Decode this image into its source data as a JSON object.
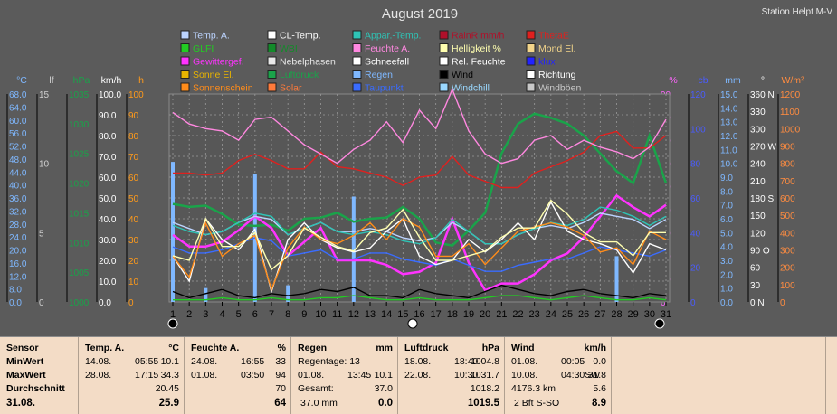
{
  "chart_data": {
    "type": "line",
    "title": "August 2019",
    "station": "Station Helpt M-V",
    "x": [
      1,
      2,
      3,
      4,
      5,
      6,
      7,
      8,
      9,
      10,
      11,
      12,
      13,
      14,
      15,
      16,
      17,
      18,
      19,
      20,
      21,
      22,
      23,
      24,
      25,
      26,
      27,
      28,
      29,
      30,
      31
    ],
    "xlim": [
      1,
      31
    ],
    "grid": true,
    "axes_left": [
      {
        "label": "°C",
        "color": "#7fb8ff",
        "ticks": [
          "68.0",
          "64.0",
          "60.0",
          "56.0",
          "52.0",
          "48.0",
          "44.0",
          "40.0",
          "36.0",
          "32.0",
          "28.0",
          "24.0",
          "20.0",
          "16.0",
          "12.0",
          "8.0",
          "0.0"
        ]
      },
      {
        "label": "lf",
        "color": "#d0d0d0",
        "ticks": [
          "15",
          "10",
          "5",
          "0"
        ]
      },
      {
        "label": "hPa",
        "color": "#1aa34a",
        "ticks": [
          "1035",
          "1030",
          "1025",
          "1020",
          "1015",
          "1010",
          "1005",
          "1000"
        ]
      },
      {
        "label": "km/h",
        "color": "#ffffff",
        "ticks": [
          "100.0",
          "90.0",
          "80.0",
          "70.0",
          "60.0",
          "50.0",
          "40.0",
          "30.0",
          "20.0",
          "10.0",
          "0.0"
        ]
      },
      {
        "label": "h",
        "color": "#ff9a1a",
        "ticks": [
          "100",
          "90",
          "80",
          "70",
          "60",
          "50",
          "40",
          "30",
          "20",
          "10",
          "0"
        ]
      }
    ],
    "axes_right": [
      {
        "label": "%",
        "color": "#ff66ff",
        "ticks": [
          "90",
          "80",
          "70",
          "60",
          "50",
          "40",
          "30",
          "20",
          "10",
          "0"
        ]
      },
      {
        "label": "cb",
        "color": "#4a5cff",
        "ticks": [
          "120",
          "100",
          "80",
          "60",
          "40",
          "20",
          "0"
        ]
      },
      {
        "label": "mm",
        "color": "#7fb8ff",
        "ticks": [
          "15.0",
          "14.0",
          "13.0",
          "12.0",
          "11.0",
          "10.0",
          "9.0",
          "8.0",
          "7.0",
          "6.0",
          "5.0",
          "4.0",
          "3.0",
          "2.0",
          "1.0",
          "0.0"
        ]
      },
      {
        "label": "°",
        "color": "#ffffff",
        "ticks": [
          "360 N",
          "330",
          "300",
          "270 W",
          "240",
          "210",
          "180 S",
          "150",
          "120",
          "90 O",
          "60",
          "30",
          "0 N"
        ]
      },
      {
        "label": "W/m²",
        "color": "#ff8c40",
        "ticks": [
          "1200",
          "1100",
          "1000",
          "900",
          "800",
          "700",
          "600",
          "500",
          "400",
          "300",
          "200",
          "100",
          "0"
        ]
      }
    ],
    "legend": [
      {
        "name": "Temp. A.",
        "color": "#bcd4ff"
      },
      {
        "name": "CL-Temp.",
        "color": "#ffffff"
      },
      {
        "name": "Appar.-Temp.",
        "color": "#2ec4b6"
      },
      {
        "name": "RainR mm/h",
        "color": "#b0102a"
      },
      {
        "name": "ThetaE",
        "color": "#e0201e"
      },
      {
        "name": "GLFI",
        "color": "#22cc22"
      },
      {
        "name": "WBI",
        "color": "#138a2a"
      },
      {
        "name": "Feuchte A.",
        "color": "#ff88e0"
      },
      {
        "name": "Helligkeit %",
        "color": "#ffffb0"
      },
      {
        "name": "Mond El.",
        "color": "#f3d58a"
      },
      {
        "name": "Gewittergef.",
        "color": "#ff33ff"
      },
      {
        "name": "Nebelphasen",
        "color": "#e8e8e8"
      },
      {
        "name": "Schneefall",
        "color": "#ffffff"
      },
      {
        "name": "Rel. Feuchte",
        "color": "#ffffff"
      },
      {
        "name": "klux",
        "color": "#2222ff"
      },
      {
        "name": "Sonne El.",
        "color": "#e8b400"
      },
      {
        "name": "Luftdruck",
        "color": "#1aa34a"
      },
      {
        "name": "Regen",
        "color": "#7fb8ff"
      },
      {
        "name": "Wind",
        "color": "#000000"
      },
      {
        "name": "Richtung",
        "color": "#ffffff"
      },
      {
        "name": "Sonnenschein",
        "color": "#ff8c1a"
      },
      {
        "name": "Solar",
        "color": "#ff7a3a"
      },
      {
        "name": "Taupunkt",
        "color": "#3a6cff"
      },
      {
        "name": "Windchill",
        "color": "#9ad8ff"
      },
      {
        "name": "Windböen",
        "color": "#c8c8c8"
      }
    ],
    "series": [
      {
        "name": "Luftdruck",
        "color": "#1aa34a",
        "axis": "hPa",
        "values": [
          1016.5,
          1016.0,
          1016.2,
          1014.8,
          1013.0,
          1012.8,
          1013.0,
          1012.0,
          1014.0,
          1014.2,
          1015.0,
          1013.5,
          1014.0,
          1014.2,
          1016.0,
          1014.0,
          1010.0,
          1009.5,
          1012.0,
          1015.0,
          1025.0,
          1030.0,
          1031.7,
          1031.0,
          1030.0,
          1028.0,
          1025.0,
          1022.0,
          1020.0,
          1028.0,
          1020.0
        ]
      },
      {
        "name": "ThetaE",
        "color": "#e0201e",
        "axis": "km/h",
        "values": [
          62,
          62,
          61,
          62,
          68,
          71,
          68,
          64,
          64,
          72,
          65,
          64,
          62,
          60,
          56,
          60,
          61,
          70,
          61,
          58,
          55,
          55,
          62,
          65,
          68,
          72,
          80,
          82,
          74,
          74,
          80
        ]
      },
      {
        "name": "Feuchte A.",
        "color": "#ff88e0",
        "axis": "%",
        "values": [
          82,
          77,
          75,
          74,
          70,
          79,
          80,
          74,
          68,
          64,
          60,
          66,
          70,
          78,
          69,
          83,
          75,
          92,
          74,
          64,
          60,
          62,
          70,
          72,
          66,
          70,
          67,
          65,
          62,
          67,
          79
        ]
      },
      {
        "name": "Gewittergef.",
        "color": "#ff33ff",
        "axis": "%",
        "values": [
          29,
          24,
          24,
          26,
          31,
          37,
          32,
          20,
          26,
          32,
          18,
          18,
          18,
          16,
          12,
          13,
          17,
          36,
          17,
          5,
          8,
          8,
          12,
          18,
          21,
          28,
          37,
          46,
          41,
          37,
          42
        ]
      },
      {
        "name": "Temp. A.",
        "color": "#bcd4ff",
        "axis": "°C",
        "values": [
          26,
          24,
          22,
          23,
          26,
          28,
          27,
          22,
          24,
          26,
          23,
          23,
          24,
          23,
          21,
          20,
          21,
          26,
          23,
          19,
          19,
          22,
          24,
          25,
          24,
          26,
          29,
          28,
          27,
          24,
          27
        ]
      },
      {
        "name": "Taupunkt",
        "color": "#3a6cff",
        "axis": "°C",
        "values": [
          18,
          16,
          16,
          17,
          19,
          21,
          20,
          15,
          16,
          17,
          14,
          14,
          16,
          16,
          14,
          13,
          12,
          14,
          12,
          10,
          10,
          12,
          13,
          14,
          14,
          16,
          18,
          17,
          16,
          15,
          17
        ]
      },
      {
        "name": "Appar.-Temp.",
        "color": "#2ec4b6",
        "axis": "°C",
        "values": [
          25,
          23,
          22,
          23,
          26,
          29,
          28,
          22,
          24,
          26,
          23,
          22,
          23,
          22,
          20,
          19,
          21,
          27,
          23,
          19,
          19,
          22,
          24,
          26,
          25,
          27,
          31,
          30,
          28,
          25,
          28
        ]
      },
      {
        "name": "CL-Temp.",
        "color": "#ffffff",
        "axis": "km/h",
        "values": [
          22,
          10,
          40,
          30,
          25,
          35,
          5,
          30,
          38,
          30,
          26,
          24,
          26,
          34,
          40,
          22,
          18,
          20,
          30,
          24,
          30,
          38,
          30,
          48,
          34,
          30,
          28,
          25,
          14,
          28,
          25
        ]
      },
      {
        "name": "Sonnenschein",
        "color": "#ff8c1a",
        "axis": "h",
        "values": [
          22,
          12,
          38,
          22,
          28,
          32,
          6,
          26,
          36,
          30,
          28,
          32,
          38,
          30,
          40,
          36,
          22,
          22,
          28,
          18,
          26,
          34,
          36,
          38,
          36,
          32,
          24,
          26,
          18,
          34,
          30
        ]
      },
      {
        "name": "Helligkeit %",
        "color": "#ffffb0",
        "axis": "%",
        "values": [
          20,
          18,
          36,
          24,
          24,
          30,
          14,
          20,
          32,
          28,
          24,
          22,
          30,
          32,
          40,
          28,
          18,
          18,
          20,
          22,
          28,
          32,
          32,
          44,
          38,
          30,
          26,
          26,
          20,
          30,
          30
        ]
      },
      {
        "name": "Wind",
        "color": "#000000",
        "axis": "km/h",
        "values": [
          5,
          2,
          4,
          6,
          3,
          2,
          4,
          3,
          4,
          6,
          5,
          7,
          3,
          3,
          2,
          6,
          4,
          3,
          2,
          5,
          8,
          6,
          4,
          3,
          5,
          6,
          4,
          3,
          2,
          4,
          3
        ]
      },
      {
        "name": "GLFI",
        "color": "#22cc22",
        "axis": "km/h",
        "values": [
          1,
          1,
          1,
          2,
          1,
          1,
          2,
          1,
          1,
          2,
          2,
          3,
          2,
          1,
          1,
          2,
          1,
          1,
          1,
          2,
          3,
          3,
          2,
          1,
          2,
          3,
          2,
          1,
          1,
          2,
          1
        ]
      },
      {
        "name": "Regen",
        "color": "#7fb8ff",
        "axis": "mm",
        "type": "bar",
        "values": [
          10.1,
          0,
          1.0,
          0,
          0,
          9.2,
          0,
          1.2,
          0,
          0,
          0,
          7.6,
          0,
          0,
          0,
          0,
          0,
          0,
          0,
          0,
          0,
          0,
          0,
          0,
          0,
          0,
          0,
          3.3,
          0,
          0,
          0
        ]
      }
    ]
  },
  "stats_table": {
    "columns": [
      {
        "title": "Sensor",
        "unit": "",
        "rows": [
          "MinWert",
          "MaxWert",
          "Durchschnitt"
        ],
        "footer": "31.08."
      },
      {
        "title": "Temp. A.",
        "unit": "°C",
        "rows": [
          [
            "14.08.",
            "05:55",
            "10.1"
          ],
          [
            "28.08.",
            "17:15",
            "34.3"
          ],
          [
            "",
            "",
            "20.45"
          ]
        ],
        "footer": "25.9"
      },
      {
        "title": "Feuchte A.",
        "unit": "%",
        "rows": [
          [
            "24.08.",
            "16:55",
            "33"
          ],
          [
            "01.08.",
            "03:50",
            "94"
          ],
          [
            "",
            "",
            "70"
          ]
        ],
        "footer": "64"
      },
      {
        "title": "Regen",
        "unit": "mm",
        "rows": [
          [
            "Regentage: 13",
            "",
            ""
          ],
          [
            "01.08.",
            "13:45",
            "10.1"
          ],
          [
            "Gesamt:",
            "",
            "37.0"
          ]
        ],
        "footer_left": "37.0 mm",
        "footer": "0.0"
      },
      {
        "title": "Luftdruck",
        "unit": "hPa",
        "rows": [
          [
            "18.08.",
            "18:40",
            "1004.8"
          ],
          [
            "22.08.",
            "10:30",
            "1031.7"
          ],
          [
            "",
            "",
            "1018.2"
          ]
        ],
        "footer": "1019.5"
      },
      {
        "title": "Wind",
        "unit": "km/h",
        "rows": [
          [
            "01.08.",
            "00:05",
            "0.0"
          ],
          [
            "10.08.",
            "04:30SW",
            "31.8"
          ],
          [
            "4176.3 km",
            "",
            "5.6"
          ]
        ],
        "footer_left": "2 Bft S-SO",
        "footer": "8.9"
      }
    ]
  }
}
